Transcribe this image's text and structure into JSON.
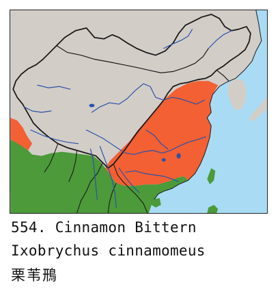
{
  "caption": {
    "number_name": "554. Cinnamon Bittern",
    "scientific_name": "Ixobrychus cinnamomeus",
    "chinese_name": "栗苇鳽"
  },
  "map": {
    "colors": {
      "water": "#a9dbf5",
      "land": "#d3cdc8",
      "range_breeding": "#f26034",
      "range_resident": "#4c9a3a",
      "border": "#1a1a1a",
      "river": "#2a52a8"
    }
  }
}
